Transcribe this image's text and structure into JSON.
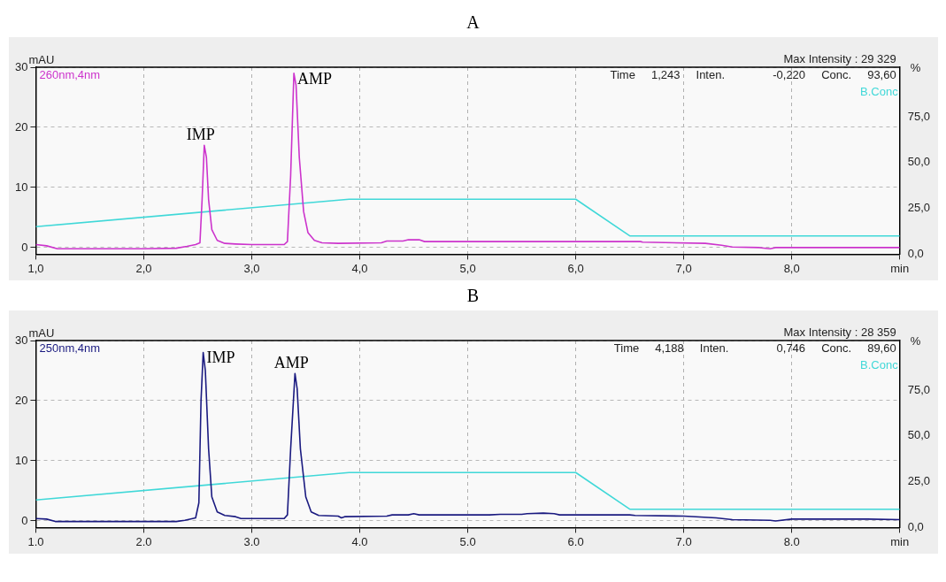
{
  "chart_data": [
    {
      "type": "line",
      "title": "A",
      "ylabel": "mAU",
      "y2label": "%",
      "xlim": [
        1,
        9
      ],
      "xticks": [
        {
          "value": 1,
          "label": "1,0"
        },
        {
          "value": 2,
          "label": "2,0"
        },
        {
          "value": 3,
          "label": "3,0"
        },
        {
          "value": 4,
          "label": "4,0"
        },
        {
          "value": 5,
          "label": "5,0"
        },
        {
          "value": 6,
          "label": "6,0"
        },
        {
          "value": 7,
          "label": "7,0"
        },
        {
          "value": 8,
          "label": "8,0"
        },
        {
          "value": 9,
          "label": "min"
        }
      ],
      "ylim": [
        -1.1,
        30
      ],
      "yticks": [
        0,
        10,
        20,
        30
      ],
      "y2lim": [
        0,
        102
      ],
      "y2ticks": [
        {
          "value": 0,
          "label": "0,0"
        },
        {
          "value": 25,
          "label": "25,0"
        },
        {
          "value": 50,
          "label": "50,0"
        },
        {
          "value": 75,
          "label": "75,0"
        }
      ],
      "grid": true,
      "legend": false,
      "line_style": "solid",
      "series": [
        {
          "name": "260nm,4nm",
          "color": "#cc33cc",
          "x": [
            1.0,
            1.1,
            1.2,
            1.5,
            2.0,
            2.3,
            2.4,
            2.48,
            2.52,
            2.54,
            2.56,
            2.58,
            2.6,
            2.63,
            2.68,
            2.75,
            2.85,
            3.0,
            3.3,
            3.33,
            3.36,
            3.39,
            3.41,
            3.44,
            3.48,
            3.52,
            3.58,
            3.65,
            3.8,
            4.2,
            4.25,
            4.4,
            4.45,
            4.55,
            4.6,
            5.0,
            6.0,
            6.6,
            6.62,
            7.2,
            7.35,
            7.45,
            7.7,
            7.8,
            7.85,
            8.5,
            9.0
          ],
          "values": [
            0.5,
            0.3,
            -0.2,
            -0.2,
            -0.2,
            -0.1,
            0.2,
            0.5,
            0.8,
            8,
            17,
            15,
            8,
            3,
            1.2,
            0.7,
            0.6,
            0.5,
            0.5,
            1,
            12,
            29,
            27,
            15,
            6,
            2.5,
            1.2,
            0.8,
            0.7,
            0.8,
            1.1,
            1.1,
            1.3,
            1.3,
            1.0,
            1.0,
            1.0,
            1.0,
            0.9,
            0.7,
            0.4,
            0.1,
            0.0,
            -0.2,
            0.0,
            0.0,
            0.0
          ]
        },
        {
          "name": "B.Conc",
          "color": "#40d8d8",
          "axis": "y2",
          "x": [
            1.0,
            3.9,
            6.0,
            6.5,
            9.0
          ],
          "values": [
            15,
            30,
            30,
            10,
            10
          ]
        }
      ],
      "annotations": [
        "Max Intensity : 29 329",
        "Time     1,243     Inten.               -0,220     Conc.     93,60",
        {
          "text": "IMP",
          "x": 2.56,
          "y": 17
        },
        {
          "text": "AMP",
          "x": 3.39,
          "y": 29
        }
      ]
    },
    {
      "type": "line",
      "title": "B",
      "ylabel": "mAU",
      "y2label": "%",
      "xlim": [
        1,
        9
      ],
      "xticks": [
        {
          "value": 1,
          "label": "1.0"
        },
        {
          "value": 2,
          "label": "2.0"
        },
        {
          "value": 3,
          "label": "3.0"
        },
        {
          "value": 4,
          "label": "4.0"
        },
        {
          "value": 5,
          "label": "5.0"
        },
        {
          "value": 6,
          "label": "6.0"
        },
        {
          "value": 7,
          "label": "7.0"
        },
        {
          "value": 8,
          "label": "8.0"
        },
        {
          "value": 9,
          "label": "min"
        }
      ],
      "ylim": [
        -1.1,
        30
      ],
      "yticks": [
        0,
        10,
        20,
        30
      ],
      "y2lim": [
        0,
        102
      ],
      "y2ticks": [
        {
          "value": 0,
          "label": "0,0"
        },
        {
          "value": 25,
          "label": "25,0"
        },
        {
          "value": 50,
          "label": "50,0"
        },
        {
          "value": 75,
          "label": "75,0"
        }
      ],
      "grid": true,
      "legend": false,
      "line_style": "solid",
      "series": [
        {
          "name": "250nm,4nm",
          "color": "#1a1a80",
          "x": [
            1.0,
            1.1,
            1.18,
            2.3,
            2.38,
            2.48,
            2.51,
            2.53,
            2.55,
            2.57,
            2.6,
            2.63,
            2.68,
            2.75,
            2.85,
            2.9,
            3.3,
            3.33,
            3.36,
            3.4,
            3.42,
            3.45,
            3.5,
            3.55,
            3.62,
            3.8,
            3.83,
            3.86,
            4.25,
            4.3,
            4.45,
            4.5,
            4.55,
            5.0,
            5.2,
            5.3,
            5.5,
            5.55,
            5.7,
            5.8,
            5.85,
            6.0,
            6.5,
            6.55,
            7.0,
            7.3,
            7.45,
            7.8,
            7.85,
            8.0,
            8.5,
            8.7,
            9.0
          ],
          "values": [
            0.4,
            0.3,
            -0.1,
            -0.1,
            0.1,
            0.5,
            3,
            20,
            28,
            25,
            12,
            4,
            1.5,
            0.9,
            0.7,
            0.4,
            0.4,
            1,
            12,
            24.5,
            22,
            12,
            4,
            1.5,
            0.9,
            0.8,
            0.5,
            0.7,
            0.8,
            1.0,
            1.0,
            1.2,
            1.0,
            1.0,
            1.0,
            1.1,
            1.1,
            1.2,
            1.3,
            1.2,
            1.0,
            1.0,
            1.0,
            0.9,
            0.8,
            0.5,
            0.2,
            0.1,
            0.0,
            0.3,
            0.3,
            0.3,
            0.2
          ]
        },
        {
          "name": "B.Conc",
          "color": "#40d8d8",
          "axis": "y2",
          "x": [
            1.0,
            3.9,
            6.0,
            6.5,
            9.0
          ],
          "values": [
            15,
            30,
            30,
            10,
            10
          ]
        }
      ],
      "annotations": [
        "Max Intensity : 28 359",
        "Time     4,188     Inten.               0,746     Conc.     89,60",
        {
          "text": "IMP",
          "x": 2.55,
          "y": 28
        },
        {
          "text": "AMP",
          "x": 3.4,
          "y": 24.5
        }
      ]
    }
  ]
}
